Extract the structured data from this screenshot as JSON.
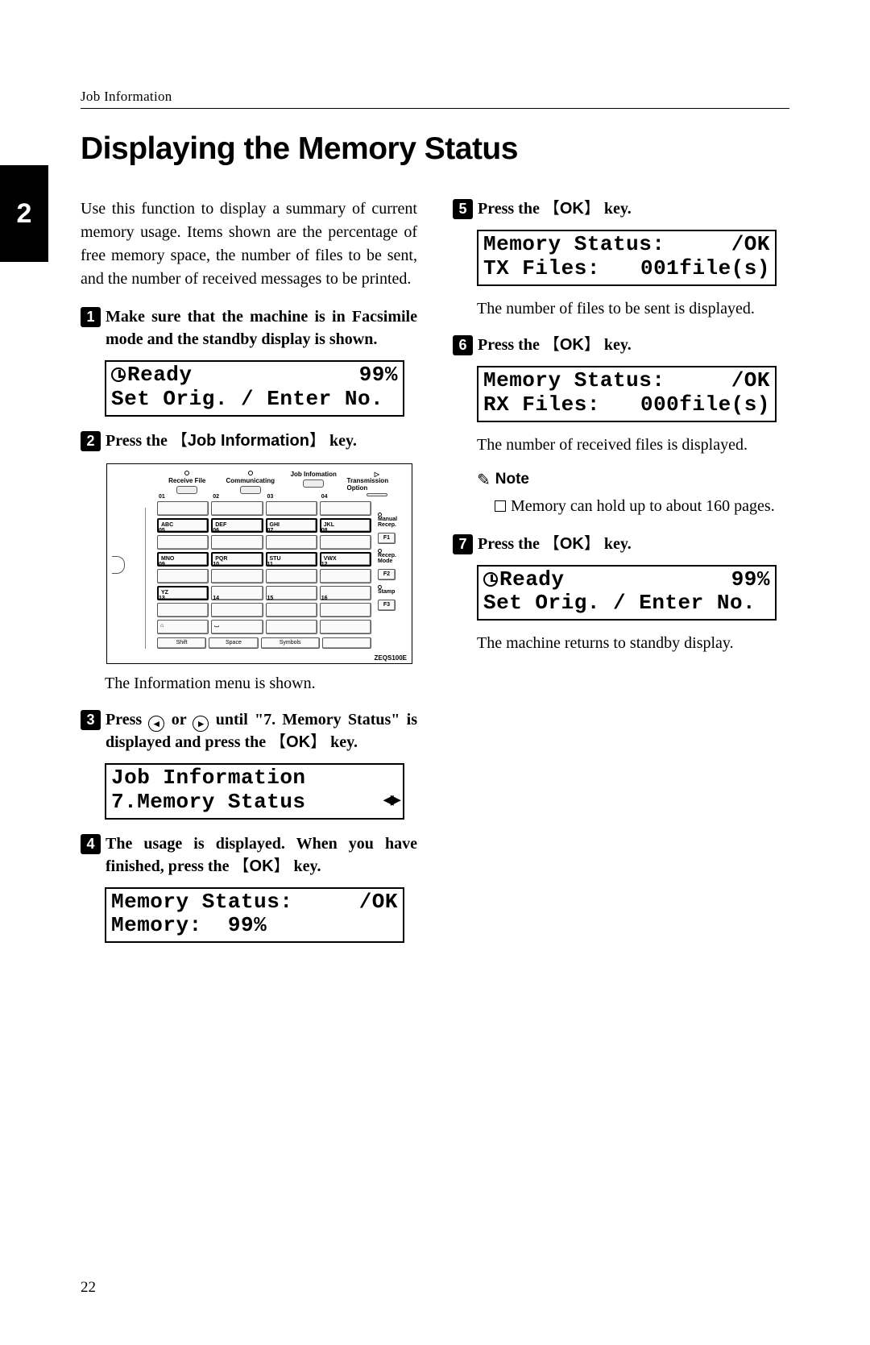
{
  "header_label": "Job Information",
  "title": "Displaying the Memory Status",
  "section_tab": "2",
  "page_number": "22",
  "intro": "Use this function to display a summary of current memory usage. Items shown are the percentage of free memory space, the number of files to be sent, and the number of received messages to be printed.",
  "steps": {
    "s1": "Make sure that the machine is in Facsimile mode and the standby display is shown.",
    "s2_pre": "Press the ",
    "s2_key": "Job Information",
    "s2_post": " key.",
    "s2_body": "The Information menu is shown.",
    "s3_pre": "Press ",
    "s3_mid": " or ",
    "s3_post": " until \"7. Memory Status\" is displayed and press the ",
    "s3_key": "OK",
    "s3_end": " key.",
    "s4_pre": "The usage is displayed. When you have finished, press the ",
    "s4_key": "OK",
    "s4_post": " key.",
    "s5_pre": "Press the ",
    "s5_key": "OK",
    "s5_post": " key.",
    "s5_body": "The number of files to be sent is displayed.",
    "s6_pre": "Press the ",
    "s6_key": "OK",
    "s6_post": " key.",
    "s6_body": "The number of received files is displayed.",
    "s7_pre": "Press the ",
    "s7_key": "OK",
    "s7_post": " key.",
    "s7_body": "The machine returns to standby display."
  },
  "note_label": "Note",
  "note_body": "Memory can hold up to about 160 pages.",
  "lcd": {
    "ready": {
      "l1_left": "Ready",
      "l1_right": "99%",
      "l2": "Set Orig. / Enter No."
    },
    "jobinfo": {
      "l1": "Job Information",
      "l2_left": "7.Memory Status"
    },
    "mem": {
      "l1_left": "Memory Status:",
      "l1_right": "/OK",
      "l2": "Memory:  99%"
    },
    "tx": {
      "l1_left": "Memory Status:",
      "l1_right": "/OK",
      "l2_left": "TX Files:",
      "l2_right": "001file(s)"
    },
    "rx": {
      "l1_left": "Memory Status:",
      "l1_right": "/OK",
      "l2_left": "RX Files:",
      "l2_right": "000file(s)"
    },
    "ready2": {
      "l1_left": "Ready",
      "l1_right": "99%",
      "l2": "Set Orig. / Enter No."
    }
  },
  "keypad": {
    "top_labels": [
      "Receive File",
      "Communicating",
      "Job Infomation",
      "Transmission Option"
    ],
    "row_nums": [
      [
        "01",
        "02",
        "03",
        "04"
      ],
      [
        "05",
        "06",
        "07",
        "08"
      ],
      [
        "09",
        "10",
        "11",
        "12"
      ],
      [
        "13",
        "14",
        "15",
        "16"
      ]
    ],
    "row_alpha": [
      [
        "ABC",
        "DEF",
        "GHI",
        "JKL"
      ],
      [
        "MNO",
        "PQR",
        "STU",
        "VWX"
      ],
      [
        "YZ",
        "",
        "",
        ""
      ]
    ],
    "side": [
      {
        "lbl": "Manual Recep."
      },
      {
        "lbl": "F1"
      },
      {
        "lbl": "Recep. Mode"
      },
      {
        "lbl": "F2"
      },
      {
        "lbl": "Stamp"
      },
      {
        "lbl": "F3"
      }
    ],
    "bottom": [
      "Shift",
      "Space",
      "Symbols"
    ],
    "ref": "ZEQS100E"
  }
}
